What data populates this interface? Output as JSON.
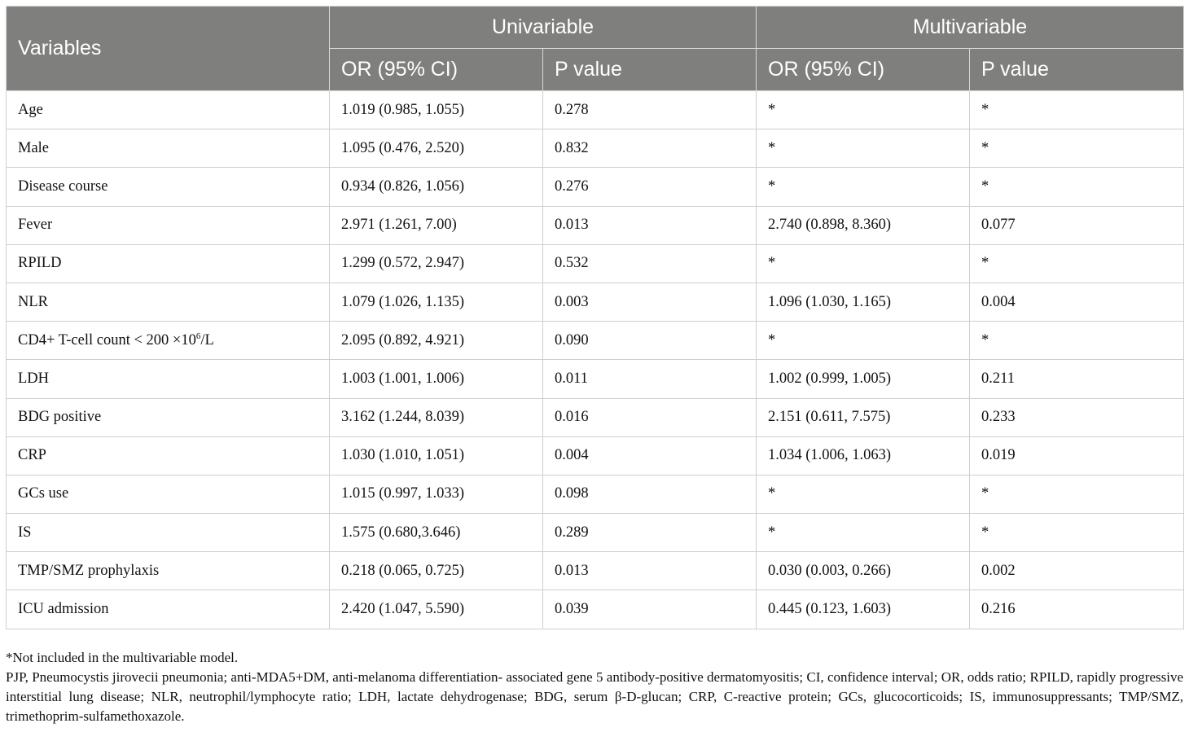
{
  "header": {
    "variables": "Variables",
    "univariable": "Univariable",
    "multivariable": "Multivariable",
    "or_ci": "OR (95% CI)",
    "p_value": "P value"
  },
  "rows": [
    {
      "variable": "Age",
      "uni_or": "1.019 (0.985, 1.055)",
      "uni_p": "0.278",
      "multi_or": "*",
      "multi_p": "*"
    },
    {
      "variable": "Male",
      "uni_or": "1.095 (0.476, 2.520)",
      "uni_p": "0.832",
      "multi_or": "*",
      "multi_p": "*"
    },
    {
      "variable": "Disease course",
      "uni_or": "0.934 (0.826, 1.056)",
      "uni_p": "0.276",
      "multi_or": "*",
      "multi_p": "*"
    },
    {
      "variable": "Fever",
      "uni_or": "2.971 (1.261, 7.00)",
      "uni_p": "0.013",
      "multi_or": "2.740 (0.898, 8.360)",
      "multi_p": "0.077"
    },
    {
      "variable": "RPILD",
      "uni_or": "1.299 (0.572, 2.947)",
      "uni_p": "0.532",
      "multi_or": "*",
      "multi_p": "*"
    },
    {
      "variable": "NLR",
      "uni_or": "1.079 (1.026, 1.135)",
      "uni_p": "0.003",
      "multi_or": "1.096 (1.030, 1.165)",
      "multi_p": "0.004"
    },
    {
      "variable": "CD4+ T-cell count < 200 ×10",
      "sup": "6",
      "suffix": "/L",
      "uni_or": "2.095 (0.892, 4.921)",
      "uni_p": "0.090",
      "multi_or": "*",
      "multi_p": "*"
    },
    {
      "variable": "LDH",
      "uni_or": "1.003 (1.001, 1.006)",
      "uni_p": "0.011",
      "multi_or": "1.002 (0.999, 1.005)",
      "multi_p": "0.211"
    },
    {
      "variable": "BDG positive",
      "uni_or": "3.162 (1.244, 8.039)",
      "uni_p": "0.016",
      "multi_or": "2.151 (0.611, 7.575)",
      "multi_p": "0.233"
    },
    {
      "variable": "CRP",
      "uni_or": "1.030 (1.010, 1.051)",
      "uni_p": "0.004",
      "multi_or": "1.034 (1.006, 1.063)",
      "multi_p": "0.019"
    },
    {
      "variable": "GCs use",
      "uni_or": "1.015 (0.997, 1.033)",
      "uni_p": "0.098",
      "multi_or": "*",
      "multi_p": "*"
    },
    {
      "variable": "IS",
      "uni_or": "1.575 (0.680,3.646)",
      "uni_p": "0.289",
      "multi_or": "*",
      "multi_p": "*"
    },
    {
      "variable": "TMP/SMZ prophylaxis",
      "uni_or": "0.218 (0.065, 0.725)",
      "uni_p": "0.013",
      "multi_or": "0.030 (0.003, 0.266)",
      "multi_p": "0.002"
    },
    {
      "variable": "ICU admission",
      "uni_or": "2.420 (1.047, 5.590)",
      "uni_p": "0.039",
      "multi_or": "0.445 (0.123, 1.603)",
      "multi_p": "0.216"
    }
  ],
  "footnotes": {
    "note": "*Not included in the multivariable model.",
    "abbreviations": "PJP, Pneumocystis jirovecii pneumonia; anti-MDA5+DM, anti-melanoma differentiation- associated gene 5 antibody-positive dermatomyositis; CI, confidence interval; OR, odds ratio; RPILD, rapidly progressive interstitial lung disease; NLR, neutrophil/lymphocyte ratio; LDH, lactate dehydrogenase; BDG, serum β-D-glucan; CRP, C-reactive protein; GCs, glucocorticoids; IS, immunosuppressants; TMP/SMZ, trimethoprim-sulfamethoxazole."
  }
}
